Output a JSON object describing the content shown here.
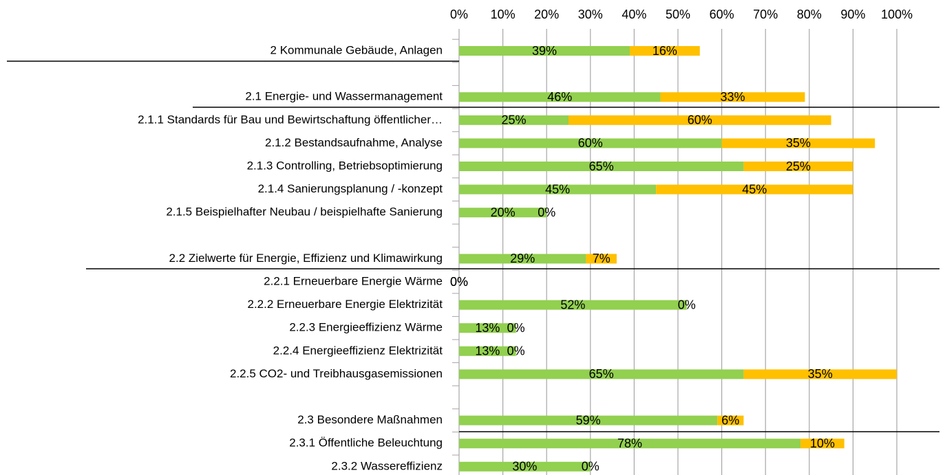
{
  "chart_data": {
    "type": "stacked-barh",
    "categories": [
      "2 Kommunale Gebäude, Anlagen",
      null,
      "2.1 Energie- und Wassermanagement",
      "2.1.1 Standards für Bau und Bewirtschaftung öffentlicher…",
      "2.1.2 Bestandsaufnahme, Analyse",
      "2.1.3 Controlling, Betriebsoptimierung",
      "2.1.4 Sanierungsplanung / -konzept",
      "2.1.5 Beispielhafter Neubau / beispielhafte Sanierung",
      null,
      "2.2 Zielwerte für Energie, Effizienz und Klimawirkung",
      "2.2.1 Erneuerbare Energie Wärme",
      "2.2.2 Erneuerbare Energie Elektrizität",
      "2.2.3 Energieeffizienz Wärme",
      "2.2.4 Energieeffizienz Elektrizität",
      "2.2.5 CO2- und Treibhausgasemissionen",
      null,
      "2.3 Besondere Maßnahmen",
      "2.3.1 Öffentliche Beleuchtung",
      "2.3.2 Wassereffizienz"
    ],
    "series": [
      {
        "color": "#92d050",
        "values": [
          39,
          null,
          46,
          25,
          60,
          65,
          45,
          20,
          null,
          29,
          0,
          52,
          13,
          13,
          65,
          null,
          59,
          78,
          30
        ],
        "value_labels": [
          "39%",
          null,
          "46%",
          "25%",
          "60%",
          "65%",
          "45%",
          "20%",
          null,
          "29%",
          "0%",
          "52%",
          "13%",
          "13%",
          "65%",
          null,
          "59%",
          "78%",
          "30%"
        ]
      },
      {
        "color": "#ffc000",
        "values": [
          16,
          null,
          33,
          60,
          35,
          25,
          45,
          0,
          null,
          7,
          0,
          0,
          0,
          0,
          35,
          null,
          6,
          10,
          0
        ],
        "value_labels": [
          "16%",
          null,
          "33%",
          "60%",
          "35%",
          "25%",
          "45%",
          "0%",
          null,
          "7%",
          "0%",
          "0%",
          "0%",
          "0%",
          "35%",
          null,
          "6%",
          "10%",
          "0%"
        ]
      }
    ],
    "xlim": [
      0,
      100
    ],
    "xticks": [
      {
        "value": 0,
        "label": "0%"
      },
      {
        "value": 10,
        "label": "10%"
      },
      {
        "value": 20,
        "label": "20%"
      },
      {
        "value": 30,
        "label": "30%"
      },
      {
        "value": 40,
        "label": "40%"
      },
      {
        "value": 50,
        "label": "50%"
      },
      {
        "value": 60,
        "label": "60%"
      },
      {
        "value": 70,
        "label": "70%"
      },
      {
        "value": 80,
        "label": "80%"
      },
      {
        "value": 90,
        "label": "90%"
      },
      {
        "value": 100,
        "label": "100%"
      }
    ],
    "grid": true
  }
}
